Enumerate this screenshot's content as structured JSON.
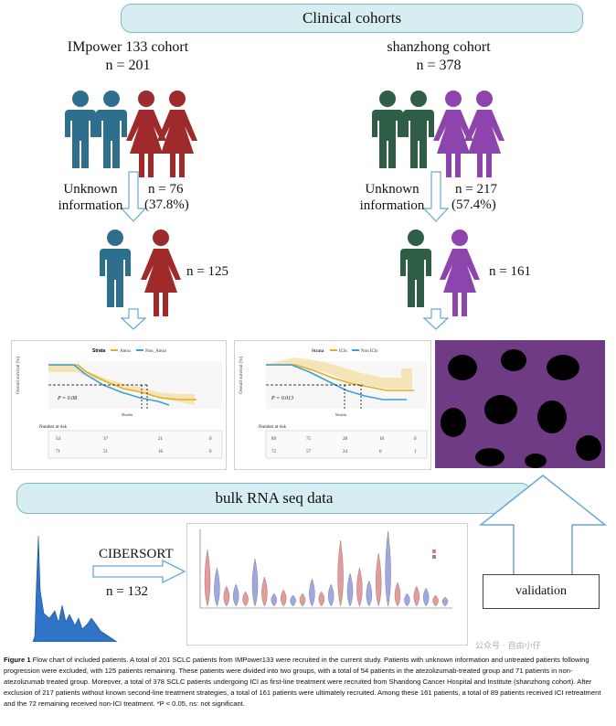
{
  "banner_top": "Clinical cohorts",
  "banner_mid": "bulk RNA seq data",
  "left_cohort": {
    "title": "IMpower 133 cohort",
    "n_total": "n = 201",
    "unknown_label": "Unknown\ninformation",
    "n_excluded": "n = 76",
    "pct_excluded": "(37.8%)",
    "n_remaining": "n = 125"
  },
  "right_cohort": {
    "title": "shanzhong cohort",
    "n_total": "n = 378",
    "unknown_label": "Unknown\ninformation",
    "n_excluded": "n = 217",
    "pct_excluded": "(57.4%)",
    "n_remaining": "n = 161"
  },
  "km_left": {
    "strata_label": "Strata",
    "legend": [
      "Atezo",
      "Non_Atezo"
    ],
    "ylabel": "Overall survival (%)",
    "xlabel": "Months",
    "pvalue": "P = 0.08",
    "risk_title": "Number at risk",
    "risk_rows": [
      [
        "54",
        "37",
        "21",
        "0"
      ],
      [
        "71",
        "51",
        "16",
        "0"
      ]
    ],
    "x_ticks": [
      "0",
      "10",
      "20",
      "30"
    ]
  },
  "km_right": {
    "strata_label": "Strata",
    "legend": [
      "ICIs",
      "Non ICIs"
    ],
    "ylabel": "Overall survival (%)",
    "xlabel": "Months",
    "pvalue": "P = 0.013",
    "risk_title": "Number at risk",
    "risk_rows": [
      [
        "89",
        "75",
        "28",
        "10",
        "0"
      ],
      [
        "72",
        "57",
        "24",
        "6",
        "1"
      ]
    ],
    "x_ticks": [
      "0",
      "10",
      "20",
      "30",
      "40"
    ]
  },
  "cibersort_label": "CIBERSORT",
  "n_rna": "n = 132",
  "validation_label": "validation",
  "watermark": "公众号 · 自由小仔",
  "caption": {
    "bold": "Figure 1",
    "text": " Flow chart of included patients. A total of 201 SCLC patients from IMPower133 were recruited in the current study. Patients with unknown information and untreated patients following progression were excluded, with 125 patients remaining. These patients were divided into two groups, with a total of 54 patients in the atezolizumab-treated group and 71 patients in non-atezolizumab treated group. Moreover, a total of 378 SCLC patients undergoing ICI as first-line treatment were recruited from Shandong Cancer Hospital and Institute (shanzhong cohort). After exclusion of 217 patients without known second-line treatment strategies, a total of 161 patients were ultimately recruited. Among these 161 patients, a total of 89 patients received ICI retreatment and the 72 remaining received non-ICI treatment. *P < 0.05, ns: not significant."
  },
  "colors": {
    "man_blue": "#2e6f8e",
    "woman_red": "#9e2a2b",
    "man_green": "#2e5e46",
    "woman_purple": "#8e44ad",
    "km_gold": "#e0b020",
    "km_blue": "#3aa0d8",
    "banner_fill": "#d6eef2"
  }
}
